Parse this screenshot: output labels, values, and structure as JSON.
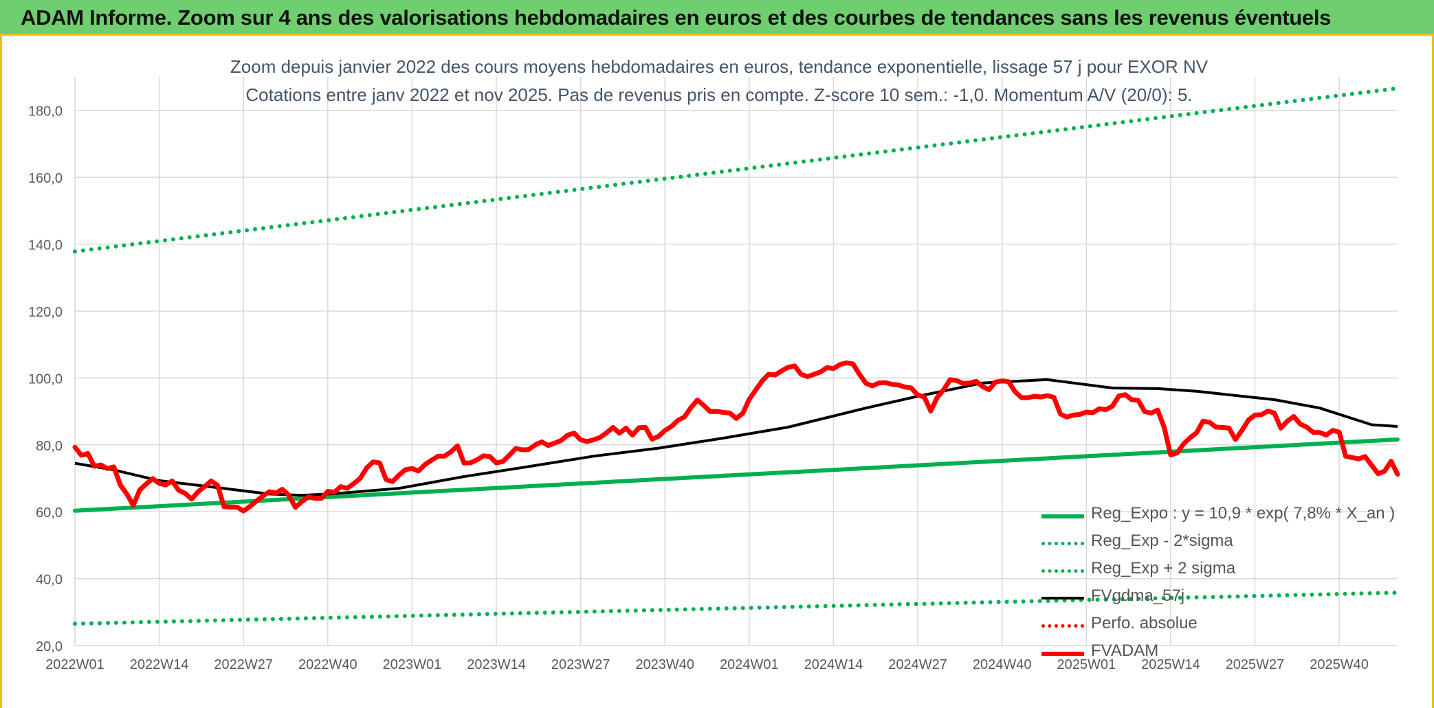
{
  "banner": {
    "title": "ADAM Informe. Zoom sur 4 ans des valorisations hebdomadaires en euros et des courbes de tendances sans les revenus éventuels"
  },
  "chart_data": {
    "type": "line",
    "title": "Zoom depuis janvier 2022 des cours moyens hebdomadaires en euros, tendance exponentielle, lissage 57 j pour EXOR NV",
    "subtitle": "Cotations entre janv 2022 et nov 2025. Pas de revenus pris en compte. Z-score 10 sem.: -1,0. Momentum A/V (20/0): 5.",
    "xlabel": "",
    "ylabel": "",
    "ylim": [
      20,
      190
    ],
    "y_ticks": [
      "20,0",
      "40,0",
      "60,0",
      "80,0",
      "100,0",
      "120,0",
      "140,0",
      "160,0",
      "180,0"
    ],
    "x_tick_labels": [
      "2022W01",
      "2022W14",
      "2022W27",
      "2022W40",
      "2023W01",
      "2023W14",
      "2023W27",
      "2023W40",
      "2024W01",
      "2024W14",
      "2024W27",
      "2024W40",
      "2025W01",
      "2025W14",
      "2025W27",
      "2025W40"
    ],
    "weeks_span": 204,
    "grid": true,
    "legend_position": "bottom-right",
    "series": [
      {
        "name": "Reg_Expo : y = 10,9 * exp( 7,8% *  X_an )",
        "style": "solid-thick",
        "color": "#00b050",
        "x": [
          0,
          204
        ],
        "values": [
          60.3,
          81.6
        ]
      },
      {
        "name": "Reg_Exp - 2*sigma",
        "style": "dotted",
        "color": "#00b050",
        "x": [
          0,
          204
        ],
        "values": [
          26.5,
          35.8
        ]
      },
      {
        "name": "Reg_Exp + 2 sigma",
        "style": "dotted",
        "color": "#00b050",
        "x": [
          0,
          204
        ],
        "values": [
          137.8,
          186.6
        ]
      },
      {
        "name": "FVgdma_57j",
        "style": "solid",
        "color": "#000000",
        "x": [
          0,
          6,
          13,
          22,
          30,
          35,
          40,
          50,
          60,
          70,
          80,
          90,
          100,
          110,
          122,
          130,
          140,
          145,
          150,
          160,
          167,
          173,
          185,
          192,
          200,
          204
        ],
        "values": [
          74.5,
          72.5,
          69.3,
          67.2,
          65.3,
          64.9,
          65.4,
          67.0,
          70.5,
          73.5,
          76.6,
          79.0,
          82.0,
          85.3,
          91.0,
          94.5,
          98.5,
          99.0,
          99.5,
          97.0,
          96.8,
          96.0,
          93.5,
          91.0,
          86.0,
          85.5
        ]
      },
      {
        "name": "Perfo. absolue",
        "style": "dotted",
        "color": "#ff0000",
        "x": [],
        "values": []
      },
      {
        "name": "FVADAM",
        "style": "solid-thick",
        "color": "#ff0000",
        "x": [
          0,
          1,
          2,
          3,
          4,
          5,
          6,
          7,
          8,
          9,
          10,
          11,
          12,
          13,
          14,
          15,
          16,
          17,
          18,
          19,
          20,
          21,
          22,
          23,
          24,
          25,
          26,
          27,
          28,
          29,
          30,
          31,
          32,
          33,
          34,
          35,
          36,
          37,
          38,
          39,
          40,
          41,
          42,
          43,
          44,
          45,
          46,
          47,
          48,
          49,
          50,
          51,
          52,
          53,
          54,
          55,
          56,
          57,
          58,
          59,
          60,
          61,
          62,
          63,
          64,
          65,
          66,
          67,
          68,
          69,
          70,
          71,
          72,
          73,
          74,
          75,
          76,
          77,
          78,
          79,
          80,
          81,
          82,
          83,
          84,
          85,
          86,
          87,
          88,
          89,
          90,
          91,
          92,
          93,
          94,
          95,
          96,
          97,
          98,
          99,
          100,
          101,
          102,
          103,
          104,
          105,
          106,
          107,
          108,
          109,
          110,
          111,
          112,
          113,
          114,
          115,
          116,
          117,
          118,
          119,
          120,
          121,
          122,
          123,
          124,
          125,
          126,
          127,
          128,
          129,
          130,
          131,
          132,
          133,
          134,
          135,
          136,
          137,
          138,
          139,
          140,
          141,
          142,
          143,
          144,
          145,
          146,
          147,
          148,
          149,
          150,
          151,
          152,
          153,
          154,
          155,
          156,
          157,
          158,
          159,
          160,
          161,
          162,
          163,
          164,
          165,
          166,
          167,
          168,
          169,
          170,
          171,
          172,
          173,
          174,
          175,
          176,
          177,
          178,
          179,
          180,
          181,
          182,
          183,
          184,
          185,
          186,
          187,
          188,
          189,
          190,
          191,
          192,
          193,
          194,
          195,
          196,
          197,
          198,
          199,
          200,
          201,
          202,
          203,
          204
        ],
        "values": [
          79.3,
          76.9,
          77.4,
          73.6,
          74.0,
          72.9,
          73.4,
          68.0,
          65.3,
          61.9,
          66.5,
          68.3,
          69.9,
          68.5,
          68.0,
          69.2,
          66.4,
          65.5,
          63.8,
          66.0,
          67.5,
          69.2,
          67.9,
          61.5,
          61.4,
          61.4,
          60.2,
          61.6,
          63.2,
          64.7,
          66.0,
          65.6,
          66.7,
          64.9,
          61.3,
          63.0,
          64.5,
          64.0,
          64.0,
          66.1,
          65.8,
          67.5,
          67.0,
          68.4,
          70.0,
          73.1,
          74.9,
          74.6,
          69.6,
          69.0,
          71.0,
          72.6,
          72.9,
          72.2,
          74.1,
          75.4,
          76.6,
          76.6,
          77.9,
          79.7,
          74.6,
          74.6,
          75.5,
          76.7,
          76.5,
          74.6,
          75.0,
          76.9,
          78.9,
          78.5,
          78.6,
          80.0,
          80.9,
          79.8,
          80.5,
          81.3,
          82.9,
          83.5,
          81.5,
          81.0,
          81.5,
          82.2,
          83.6,
          85.2,
          83.5,
          85.0,
          82.9,
          85.1,
          85.2,
          81.7,
          82.5,
          84.3,
          85.5,
          87.3,
          88.3,
          91.1,
          93.4,
          91.8,
          89.9,
          90.0,
          89.7,
          89.5,
          87.9,
          89.4,
          93.6,
          96.4,
          99.1,
          101.1,
          100.9,
          102.1,
          103.2,
          103.6,
          101.1,
          100.4,
          101.1,
          101.8,
          103.1,
          102.8,
          104.0,
          104.5,
          104.2,
          101.1,
          98.4,
          97.6,
          98.5,
          98.6,
          98.1,
          97.9,
          97.3,
          97.0,
          94.9,
          94.3,
          90.1,
          94.2,
          96.5,
          99.5,
          99.2,
          98.3,
          98.5,
          99.0,
          97.4,
          96.5,
          98.8,
          99.1,
          98.9,
          95.9,
          94.1,
          94.1,
          94.5,
          94.3,
          94.7,
          94.2,
          89.2,
          88.3,
          88.9,
          89.1,
          89.8,
          89.6,
          90.8,
          90.5,
          91.5,
          94.6,
          95.0,
          93.5,
          93.3,
          89.9,
          89.5,
          90.4,
          85.2,
          77.0,
          77.6,
          80.3,
          82.1,
          83.6,
          87.1,
          86.7,
          85.3,
          85.2,
          85.0,
          81.6,
          84.3,
          87.4,
          88.9,
          89.0,
          90.1,
          89.5,
          85.0,
          87.1,
          88.5,
          86.2,
          85.3,
          83.7,
          83.7,
          82.9,
          84.3,
          83.8,
          76.6,
          76.2,
          75.8,
          76.5,
          73.9,
          71.4,
          72.1,
          75.1,
          71.2
        ]
      }
    ]
  }
}
